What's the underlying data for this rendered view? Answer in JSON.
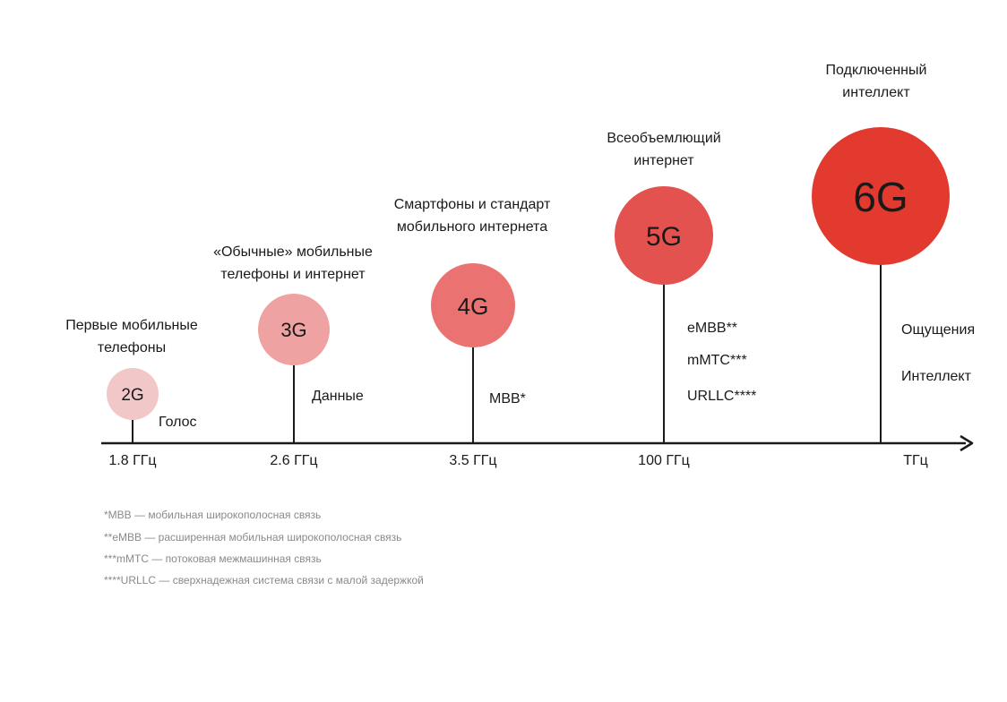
{
  "generations": [
    {
      "label": "2G",
      "description": [
        "Первые мобильные",
        "телефоны"
      ],
      "features": [
        "Голос"
      ],
      "frequency": "1.8 ГГц",
      "color": "#f2c7c8",
      "label_color": "#1a1a1a"
    },
    {
      "label": "3G",
      "description": [
        "«Обычные» мобильные",
        "телефоны и интернет"
      ],
      "features": [
        "Данные"
      ],
      "frequency": "2.6 ГГц",
      "color": "#efa2a2",
      "label_color": "#1a1a1a"
    },
    {
      "label": "4G",
      "description": [
        "Смартфоны и стандарт",
        "мобильного интернета"
      ],
      "features": [
        "MBB*"
      ],
      "frequency": "3.5 ГГц",
      "color": "#ea7271",
      "label_color": "#1a1a1a"
    },
    {
      "label": "5G",
      "description": [
        "Всеобъемлющий",
        "интернет"
      ],
      "features": [
        "eMBB**",
        "mMTC***",
        "URLLC****"
      ],
      "frequency": "100 ГГц",
      "color": "#e4524f",
      "label_color": "#1a1a1a"
    },
    {
      "label": "6G",
      "description": [
        "Подключенный",
        "интеллект"
      ],
      "features": [
        "Ощущения",
        "Интеллект"
      ],
      "frequency": "ТГц",
      "color": "#e23a2e",
      "label_color": "#1a1a1a"
    }
  ],
  "footnotes": [
    "*MBB — мобильная широкополосная связь",
    "**eMBB — расширенная мобильная широкополосная связь",
    "***mMTC — потоковая межмашинная связь",
    "****URLLC — сверхнадежная система связи с малой задержкой"
  ],
  "colors": {
    "axis": "#1a1a1a",
    "footnote_text": "#8a8a8a"
  }
}
